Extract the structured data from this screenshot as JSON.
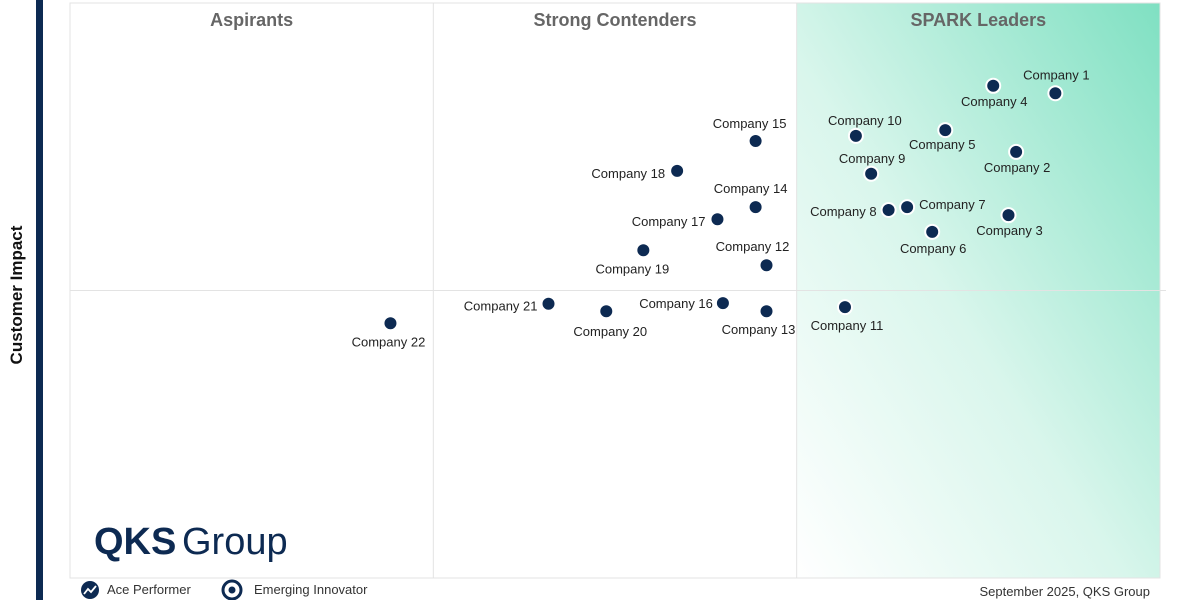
{
  "chart_data": {
    "type": "scatter",
    "ylabel": "Customer Impact",
    "quadrants": [
      "Aspirants",
      "Strong Contenders",
      "SPARK Leaders"
    ],
    "xlim": [
      0,
      100
    ],
    "ylim": [
      0,
      100
    ],
    "color": "#0d2a52",
    "points": {
      "names": [
        "Company 1",
        "Company 2",
        "Company 3",
        "Company 4",
        "Company 5",
        "Company 6",
        "Company 7",
        "Company 8",
        "Company 9",
        "Company 10",
        "Company 11",
        "Company 12",
        "Company 13",
        "Company 14",
        "Company 15",
        "Company 16",
        "Company 17",
        "Company 18",
        "Company 19",
        "Company 20",
        "Company 21",
        "Company 22"
      ],
      "x": [
        90.4,
        86.8,
        86.1,
        84.7,
        80.3,
        79.1,
        76.8,
        75.1,
        73.5,
        72.1,
        71.1,
        63.9,
        63.9,
        62.9,
        62.9,
        59.9,
        59.4,
        55.7,
        52.6,
        49.2,
        43.9,
        29.4
      ],
      "y": [
        84.3,
        74.1,
        63.1,
        85.6,
        77.9,
        60.2,
        64.5,
        64.0,
        70.3,
        76.9,
        47.1,
        54.4,
        46.4,
        64.5,
        76.0,
        47.8,
        62.4,
        70.8,
        57.0,
        46.4,
        47.7,
        44.3
      ]
    },
    "legend_items": [
      "Ace Performer",
      "Emerging Innovator"
    ],
    "source": "September 2025, QKS Group",
    "logo": {
      "bold": "QKS",
      "light": "Group"
    }
  }
}
